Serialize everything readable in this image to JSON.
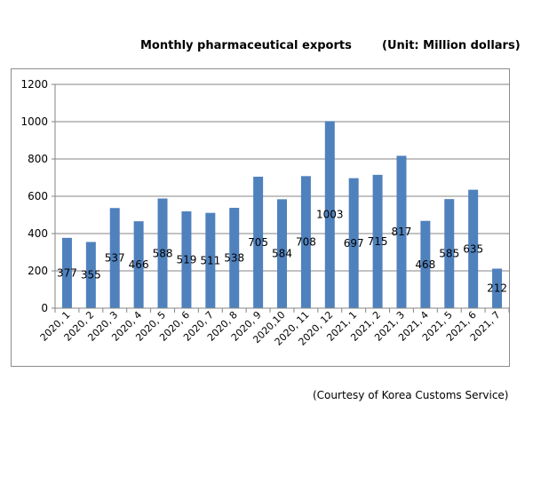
{
  "header": {
    "title": "Monthly pharmaceutical exports",
    "unit": "(Unit: Million dollars)"
  },
  "footer": {
    "courtesy": "(Courtesy of Korea Customs Service)"
  },
  "colors": {
    "bar": "#4f81bd",
    "grid": "#868686",
    "axis": "#868686",
    "text": "#000000"
  },
  "chart_data": {
    "type": "bar",
    "title": "Monthly pharmaceutical exports",
    "ylabel": "Million dollars",
    "xlabel": "",
    "ylim": [
      0,
      1200
    ],
    "yticks": [
      0,
      200,
      400,
      600,
      800,
      1000,
      1200
    ],
    "grid": true,
    "legend": "none",
    "categories": [
      "2020, 1",
      "2020, 2",
      "2020, 3",
      "2020, 4",
      "2020, 5",
      "2020, 6",
      "2020, 7",
      "2020, 8",
      "2020, 9",
      "2020,10",
      "2020, 11",
      "2020, 12",
      "2021, 1",
      "2021, 2",
      "2021, 3",
      "2021, 4",
      "2021, 5",
      "2021, 6",
      "2021, 7"
    ],
    "values": [
      377,
      355,
      537,
      466,
      588,
      519,
      511,
      538,
      705,
      584,
      708,
      1003,
      697,
      715,
      817,
      468,
      585,
      635,
      212
    ]
  }
}
